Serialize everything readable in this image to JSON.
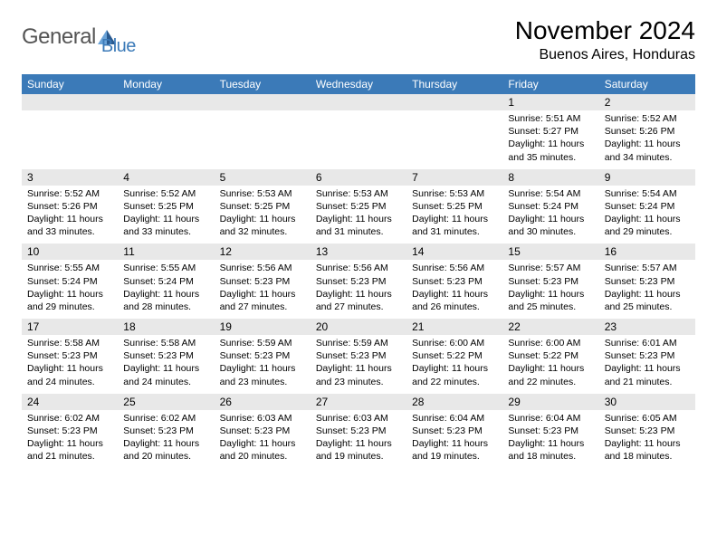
{
  "logo": {
    "gen": "General",
    "blue": "Blue"
  },
  "title": "November 2024",
  "location": "Buenos Aires, Honduras",
  "colors": {
    "header_bg": "#3b7ab8",
    "header_text": "#ffffff",
    "daynum_bg": "#e8e8e8",
    "page_bg": "#ffffff",
    "text": "#000000",
    "logo_gray": "#555555",
    "logo_blue": "#3b7ab8"
  },
  "typography": {
    "month_title_size": 28,
    "location_size": 16,
    "weekday_size": 12,
    "daynum_size": 12,
    "daydata_size": 10.5
  },
  "weekdays": [
    "Sunday",
    "Monday",
    "Tuesday",
    "Wednesday",
    "Thursday",
    "Friday",
    "Saturday"
  ],
  "weeks": [
    [
      null,
      null,
      null,
      null,
      null,
      {
        "n": "1",
        "sr": "5:51 AM",
        "ss": "5:27 PM",
        "dl": "11 hours and 35 minutes."
      },
      {
        "n": "2",
        "sr": "5:52 AM",
        "ss": "5:26 PM",
        "dl": "11 hours and 34 minutes."
      }
    ],
    [
      {
        "n": "3",
        "sr": "5:52 AM",
        "ss": "5:26 PM",
        "dl": "11 hours and 33 minutes."
      },
      {
        "n": "4",
        "sr": "5:52 AM",
        "ss": "5:25 PM",
        "dl": "11 hours and 33 minutes."
      },
      {
        "n": "5",
        "sr": "5:53 AM",
        "ss": "5:25 PM",
        "dl": "11 hours and 32 minutes."
      },
      {
        "n": "6",
        "sr": "5:53 AM",
        "ss": "5:25 PM",
        "dl": "11 hours and 31 minutes."
      },
      {
        "n": "7",
        "sr": "5:53 AM",
        "ss": "5:25 PM",
        "dl": "11 hours and 31 minutes."
      },
      {
        "n": "8",
        "sr": "5:54 AM",
        "ss": "5:24 PM",
        "dl": "11 hours and 30 minutes."
      },
      {
        "n": "9",
        "sr": "5:54 AM",
        "ss": "5:24 PM",
        "dl": "11 hours and 29 minutes."
      }
    ],
    [
      {
        "n": "10",
        "sr": "5:55 AM",
        "ss": "5:24 PM",
        "dl": "11 hours and 29 minutes."
      },
      {
        "n": "11",
        "sr": "5:55 AM",
        "ss": "5:24 PM",
        "dl": "11 hours and 28 minutes."
      },
      {
        "n": "12",
        "sr": "5:56 AM",
        "ss": "5:23 PM",
        "dl": "11 hours and 27 minutes."
      },
      {
        "n": "13",
        "sr": "5:56 AM",
        "ss": "5:23 PM",
        "dl": "11 hours and 27 minutes."
      },
      {
        "n": "14",
        "sr": "5:56 AM",
        "ss": "5:23 PM",
        "dl": "11 hours and 26 minutes."
      },
      {
        "n": "15",
        "sr": "5:57 AM",
        "ss": "5:23 PM",
        "dl": "11 hours and 25 minutes."
      },
      {
        "n": "16",
        "sr": "5:57 AM",
        "ss": "5:23 PM",
        "dl": "11 hours and 25 minutes."
      }
    ],
    [
      {
        "n": "17",
        "sr": "5:58 AM",
        "ss": "5:23 PM",
        "dl": "11 hours and 24 minutes."
      },
      {
        "n": "18",
        "sr": "5:58 AM",
        "ss": "5:23 PM",
        "dl": "11 hours and 24 minutes."
      },
      {
        "n": "19",
        "sr": "5:59 AM",
        "ss": "5:23 PM",
        "dl": "11 hours and 23 minutes."
      },
      {
        "n": "20",
        "sr": "5:59 AM",
        "ss": "5:23 PM",
        "dl": "11 hours and 23 minutes."
      },
      {
        "n": "21",
        "sr": "6:00 AM",
        "ss": "5:22 PM",
        "dl": "11 hours and 22 minutes."
      },
      {
        "n": "22",
        "sr": "6:00 AM",
        "ss": "5:22 PM",
        "dl": "11 hours and 22 minutes."
      },
      {
        "n": "23",
        "sr": "6:01 AM",
        "ss": "5:23 PM",
        "dl": "11 hours and 21 minutes."
      }
    ],
    [
      {
        "n": "24",
        "sr": "6:02 AM",
        "ss": "5:23 PM",
        "dl": "11 hours and 21 minutes."
      },
      {
        "n": "25",
        "sr": "6:02 AM",
        "ss": "5:23 PM",
        "dl": "11 hours and 20 minutes."
      },
      {
        "n": "26",
        "sr": "6:03 AM",
        "ss": "5:23 PM",
        "dl": "11 hours and 20 minutes."
      },
      {
        "n": "27",
        "sr": "6:03 AM",
        "ss": "5:23 PM",
        "dl": "11 hours and 19 minutes."
      },
      {
        "n": "28",
        "sr": "6:04 AM",
        "ss": "5:23 PM",
        "dl": "11 hours and 19 minutes."
      },
      {
        "n": "29",
        "sr": "6:04 AM",
        "ss": "5:23 PM",
        "dl": "11 hours and 18 minutes."
      },
      {
        "n": "30",
        "sr": "6:05 AM",
        "ss": "5:23 PM",
        "dl": "11 hours and 18 minutes."
      }
    ]
  ],
  "labels": {
    "sunrise": "Sunrise:",
    "sunset": "Sunset:",
    "daylight": "Daylight:"
  }
}
